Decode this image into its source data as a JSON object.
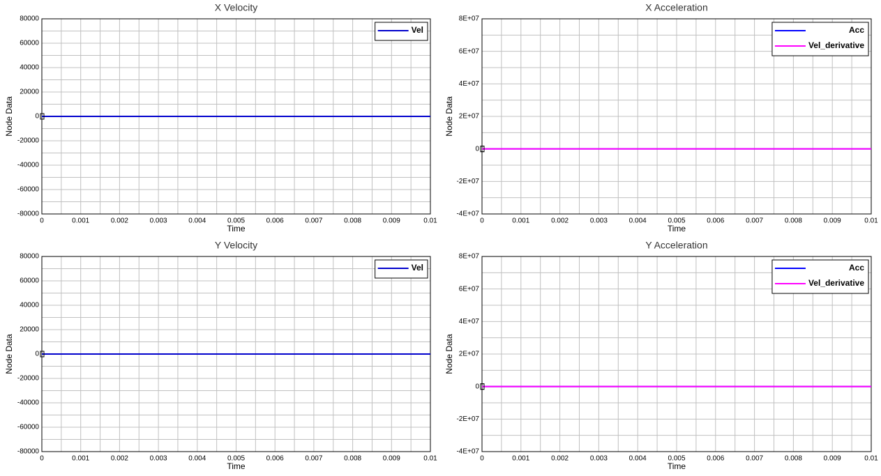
{
  "chart_data": [
    {
      "type": "line",
      "title": "X Velocity",
      "xlabel": "Time",
      "ylabel": "Node Data",
      "x": [
        0,
        0.001,
        0.002,
        0.003,
        0.004,
        0.005,
        0.006,
        0.007,
        0.008,
        0.009,
        0.01
      ],
      "series": [
        {
          "name": "Vel",
          "color": "#0000cc",
          "values": [
            0,
            0,
            0,
            0,
            0,
            0,
            0,
            0,
            0,
            0,
            0
          ]
        }
      ],
      "xlim": [
        0,
        0.01
      ],
      "xticks": [
        0,
        0.001,
        0.002,
        0.003,
        0.004,
        0.005,
        0.006,
        0.007,
        0.008,
        0.009,
        0.01
      ],
      "ylim": [
        -80000,
        80000
      ],
      "yticks": [
        -80000,
        -60000,
        -40000,
        -20000,
        0,
        20000,
        40000,
        60000,
        80000
      ],
      "grid": true,
      "minor_grid": true,
      "legend": "upper right"
    },
    {
      "type": "line",
      "title": "X Acceleration",
      "xlabel": "Time",
      "ylabel": "Node Data",
      "x": [
        0,
        0.001,
        0.002,
        0.003,
        0.004,
        0.005,
        0.006,
        0.007,
        0.008,
        0.009,
        0.01
      ],
      "series": [
        {
          "name": "Acc",
          "color": "#0000ff",
          "values": [
            0,
            0,
            0,
            0,
            0,
            0,
            0,
            0,
            0,
            0,
            0
          ]
        },
        {
          "name": "Vel_derivative",
          "color": "#ff00ff",
          "values": [
            0,
            0,
            0,
            0,
            0,
            0,
            0,
            0,
            0,
            0,
            0
          ]
        }
      ],
      "xlim": [
        0,
        0.01
      ],
      "xticks": [
        0,
        0.001,
        0.002,
        0.003,
        0.004,
        0.005,
        0.006,
        0.007,
        0.008,
        0.009,
        0.01
      ],
      "ylim": [
        -40000000,
        80000000
      ],
      "yticks": [
        {
          "value": -40000000,
          "label": "-4E+07"
        },
        {
          "value": -20000000,
          "label": "-2E+07"
        },
        0,
        {
          "value": 20000000,
          "label": "2E+07"
        },
        {
          "value": 40000000,
          "label": "4E+07"
        },
        {
          "value": 60000000,
          "label": "6E+07"
        },
        {
          "value": 80000000,
          "label": "8E+07"
        }
      ],
      "grid": true,
      "minor_grid": true,
      "legend": "upper right"
    },
    {
      "type": "line",
      "title": "Y Velocity",
      "xlabel": "Time",
      "ylabel": "Node Data",
      "x": [
        0,
        0.001,
        0.002,
        0.003,
        0.004,
        0.005,
        0.006,
        0.007,
        0.008,
        0.009,
        0.01
      ],
      "series": [
        {
          "name": "Vel",
          "color": "#0000cc",
          "values": [
            0,
            0,
            0,
            0,
            0,
            0,
            0,
            0,
            0,
            0,
            0
          ]
        }
      ],
      "xlim": [
        0,
        0.01
      ],
      "xticks": [
        0,
        0.001,
        0.002,
        0.003,
        0.004,
        0.005,
        0.006,
        0.007,
        0.008,
        0.009,
        0.01
      ],
      "ylim": [
        -80000,
        80000
      ],
      "yticks": [
        -80000,
        -60000,
        -40000,
        -20000,
        0,
        20000,
        40000,
        60000,
        80000
      ],
      "grid": true,
      "minor_grid": true,
      "legend": "upper right"
    },
    {
      "type": "line",
      "title": "Y Acceleration",
      "xlabel": "Time",
      "ylabel": "Node Data",
      "x": [
        0,
        0.001,
        0.002,
        0.003,
        0.004,
        0.005,
        0.006,
        0.007,
        0.008,
        0.009,
        0.01
      ],
      "series": [
        {
          "name": "Acc",
          "color": "#0000ff",
          "values": [
            0,
            0,
            0,
            0,
            0,
            0,
            0,
            0,
            0,
            0,
            0
          ]
        },
        {
          "name": "Vel_derivative",
          "color": "#ff00ff",
          "values": [
            0,
            0,
            0,
            0,
            0,
            0,
            0,
            0,
            0,
            0,
            0
          ]
        }
      ],
      "xlim": [
        0,
        0.01
      ],
      "xticks": [
        0,
        0.001,
        0.002,
        0.003,
        0.004,
        0.005,
        0.006,
        0.007,
        0.008,
        0.009,
        0.01
      ],
      "ylim": [
        -40000000,
        80000000
      ],
      "yticks": [
        {
          "value": -40000000,
          "label": "-4E+07"
        },
        {
          "value": -20000000,
          "label": "-2E+07"
        },
        0,
        {
          "value": 20000000,
          "label": "2E+07"
        },
        {
          "value": 40000000,
          "label": "4E+07"
        },
        {
          "value": 60000000,
          "label": "6E+07"
        },
        {
          "value": 80000000,
          "label": "8E+07"
        }
      ],
      "grid": true,
      "minor_grid": true,
      "legend": "upper right"
    }
  ]
}
